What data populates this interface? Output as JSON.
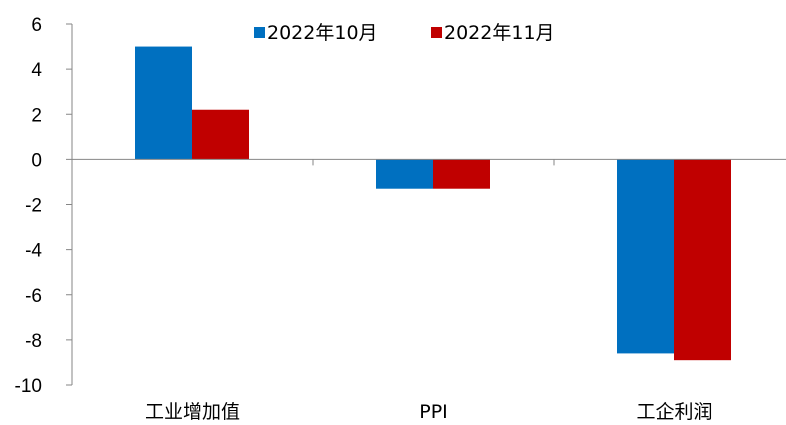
{
  "chart_data": {
    "type": "bar",
    "categories": [
      "工业增加值",
      "PPI",
      "工企利润"
    ],
    "series": [
      {
        "name": "2022年10月",
        "values": [
          5.0,
          -1.3,
          -8.6
        ],
        "color": "#0070C0"
      },
      {
        "name": "2022年11月",
        "values": [
          2.2,
          -1.3,
          -8.9
        ],
        "color": "#C00000"
      }
    ],
    "ylim": [
      -10,
      6
    ],
    "yticks": [
      6,
      4,
      2,
      0,
      -2,
      -4,
      -6,
      -8,
      -10
    ],
    "legend_position": "top-center",
    "grid": false
  }
}
